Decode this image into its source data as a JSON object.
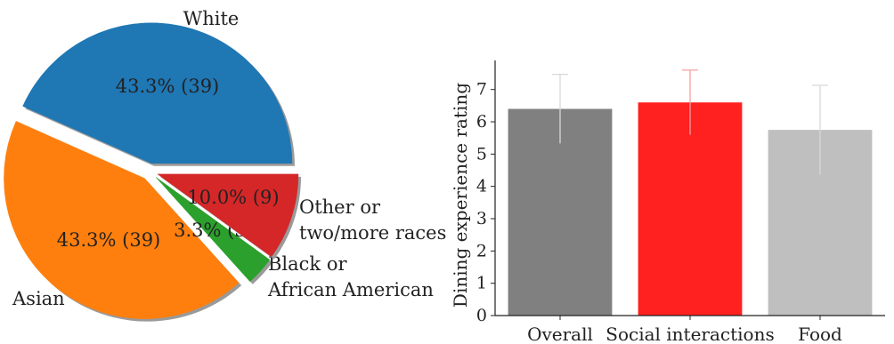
{
  "chart_data": [
    {
      "type": "pie",
      "title": "",
      "slices": [
        {
          "label": "White",
          "value": 39,
          "percent": 43.3,
          "pct_label": "43.3% (39)",
          "color": "#1f77b4",
          "exploded": true
        },
        {
          "label": "Asian",
          "value": 39,
          "percent": 43.3,
          "pct_label": "43.3% (39)",
          "color": "#ff7f0e",
          "exploded": true
        },
        {
          "label": "Black or African American",
          "label_lines": [
            "Black or",
            "African American"
          ],
          "value": 3,
          "percent": 3.3,
          "pct_label": "3.3% (3)",
          "color": "#2ca02c",
          "exploded": true
        },
        {
          "label": "Other or two/more races",
          "label_lines": [
            "Other or",
            "two/more races"
          ],
          "value": 9,
          "percent": 10.0,
          "pct_label": "10.0% (9)",
          "color": "#d62728",
          "exploded": true
        }
      ],
      "shadow": true
    },
    {
      "type": "bar",
      "title": "",
      "xlabel": "",
      "ylabel": "Dining experience rating",
      "categories": [
        "Overall",
        "Social interactions",
        "Food"
      ],
      "values": [
        6.4,
        6.6,
        5.75
      ],
      "errors": [
        1.07,
        1.0,
        1.38
      ],
      "colors": [
        "#808080",
        "#ff2020",
        "#bfbfbf"
      ],
      "ylim": [
        0,
        7.9
      ],
      "yticks": [
        0,
        1,
        2,
        3,
        4,
        5,
        6,
        7
      ],
      "grid": false
    }
  ]
}
